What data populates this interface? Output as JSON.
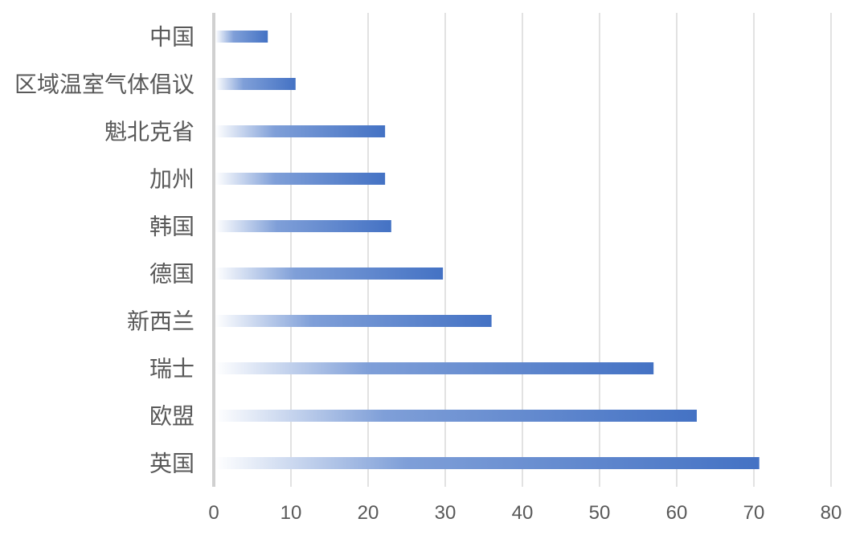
{
  "chart_data": {
    "type": "bar",
    "orientation": "horizontal",
    "categories": [
      "中国",
      "区域温室气体倡议",
      "魁北克省",
      "加州",
      "韩国",
      "德国",
      "新西兰",
      "瑞士",
      "欧盟",
      "英国"
    ],
    "values": [
      7,
      10.6,
      22.2,
      22.2,
      23,
      29.7,
      36,
      57,
      62.6,
      70.7
    ],
    "xlim": [
      0,
      80
    ],
    "xticks": [
      0,
      10,
      20,
      30,
      40,
      50,
      60,
      70,
      80
    ],
    "title": "",
    "xlabel": "",
    "ylabel": "",
    "grid": "vertical",
    "bar_style": "horizontal gradient, light to solid blue",
    "colors": {
      "bar": "#4472c4",
      "bar_start": "#ffffff",
      "grid": "#d9d9d9",
      "text": "#595959"
    }
  }
}
